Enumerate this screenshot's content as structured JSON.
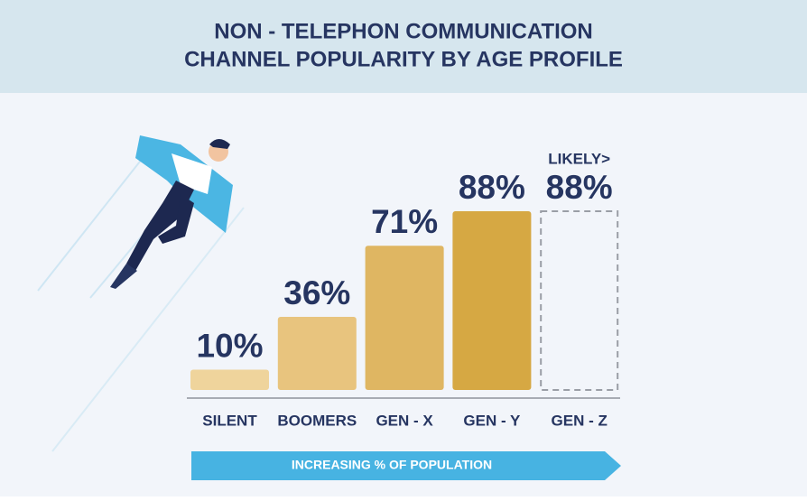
{
  "chart_data": {
    "type": "bar",
    "title": [
      "NON - TELEPHON COMMUNICATION",
      "CHANNEL POPULARITY BY AGE PROFILE"
    ],
    "categories": [
      "SILENT",
      "BOOMERS",
      "GEN - X",
      "GEN - Y",
      "GEN - Z"
    ],
    "values": [
      10,
      36,
      71,
      88,
      88
    ],
    "value_labels": [
      "10%",
      "36%",
      "71%",
      "88%",
      "88%"
    ],
    "colors": [
      "#efd49c",
      "#e8c47e",
      "#dfb662",
      "#d6a843",
      "none"
    ],
    "dashed": [
      false,
      false,
      false,
      false,
      true
    ],
    "annotation": "LIKELY>",
    "arrow_label": "INCREASING % OF POPULATION",
    "ylim": [
      0,
      100
    ]
  }
}
